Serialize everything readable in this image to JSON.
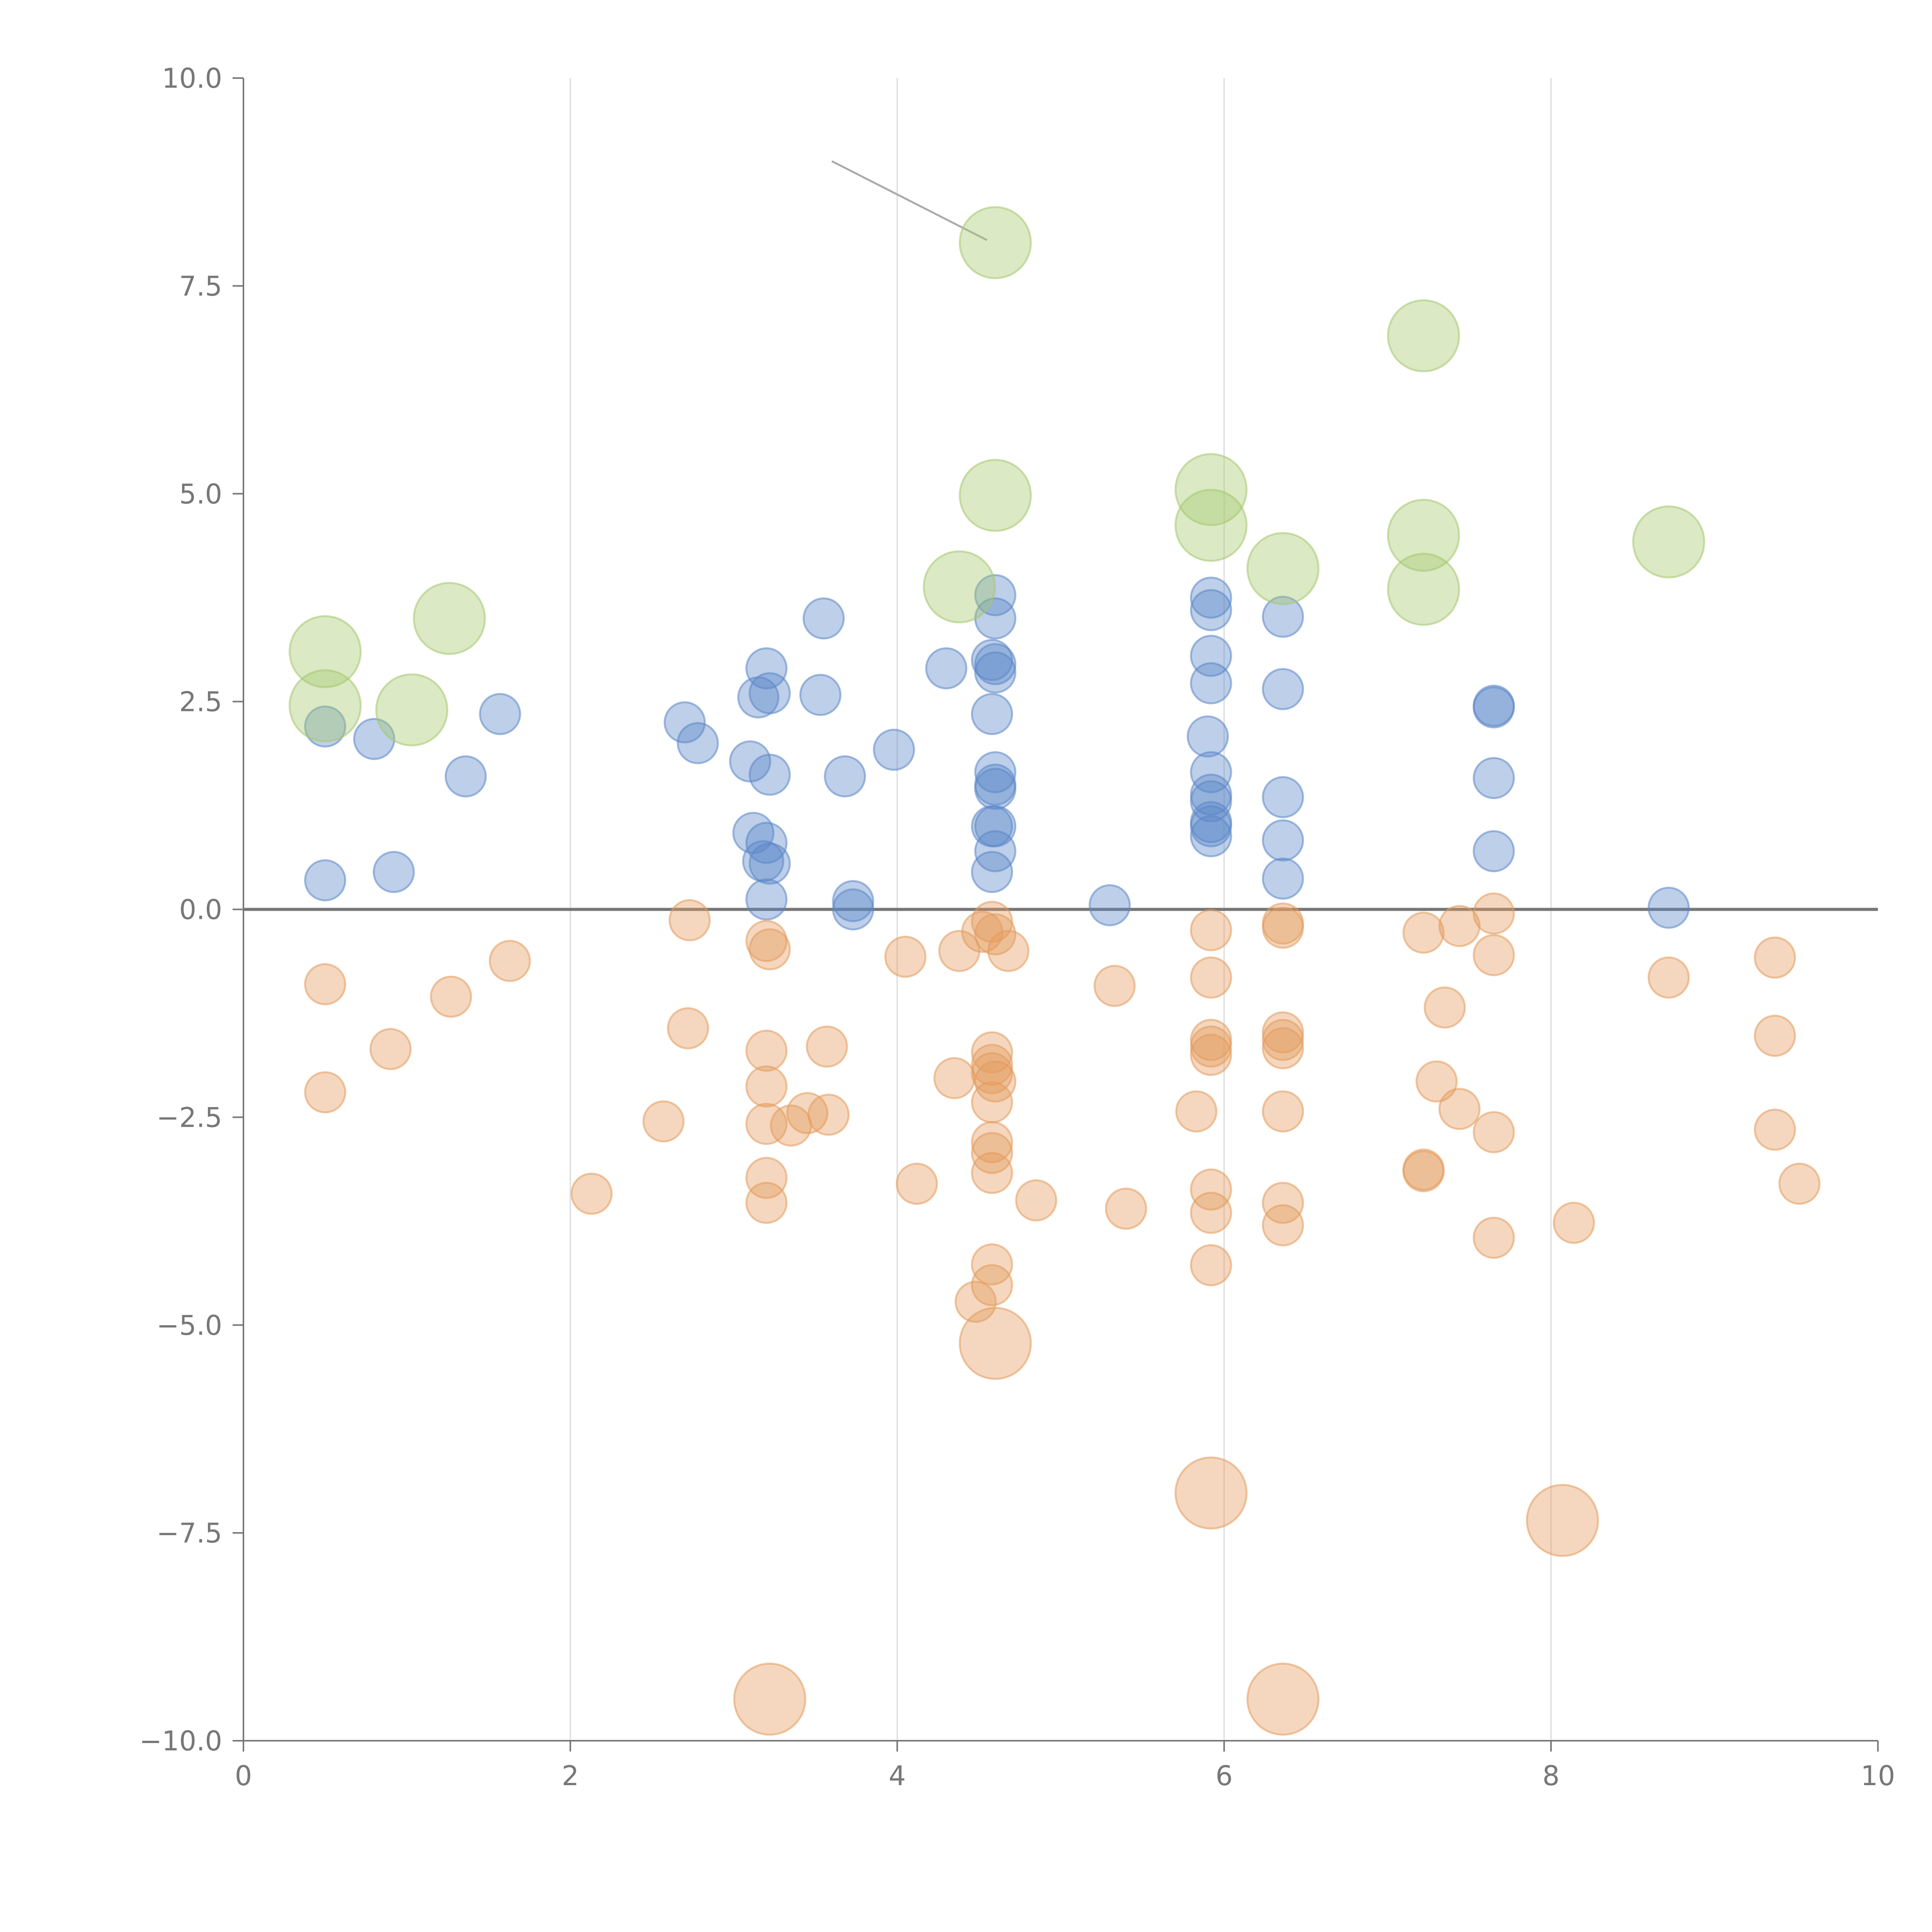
{
  "chart_data": {
    "type": "scatter",
    "title": "",
    "xlabel": "",
    "ylabel": "",
    "xlim": [
      0,
      10
    ],
    "ylim": [
      -10,
      10
    ],
    "x_ticks": [
      0,
      2,
      4,
      6,
      8,
      10
    ],
    "x_tick_labels": [
      "0",
      "2",
      "4",
      "6",
      "8",
      "10"
    ],
    "y_ticks": [
      10,
      7.5,
      5,
      2.5,
      0,
      -2.5,
      -5,
      -7.5,
      -10
    ],
    "y_tick_labels": [
      "10.0",
      "7.5",
      "5.0",
      "2.5",
      "0.0",
      "−2.5",
      "−5.0",
      "−7.5",
      "−10.0"
    ],
    "vertical_grid_x": [
      2,
      4,
      6,
      8
    ],
    "zero_line_y": 0,
    "leader_line": {
      "from": [
        3.6,
        9.0
      ],
      "to": [
        4.55,
        8.05
      ]
    },
    "legend": "none",
    "colors": {
      "positive": "#5b87c7",
      "negative": "#e39a5c",
      "highlight": "#a6c76e",
      "axis": "#777777",
      "grid": "#e2e2e2"
    },
    "series": [
      {
        "name": "positive",
        "color": "#5b87c7",
        "size": "small",
        "points": [
          [
            0.5,
            2.2
          ],
          [
            0.5,
            0.35
          ],
          [
            0.8,
            2.05
          ],
          [
            0.92,
            0.45
          ],
          [
            1.36,
            1.6
          ],
          [
            1.57,
            2.35
          ],
          [
            2.7,
            2.25
          ],
          [
            2.78,
            2.0
          ],
          [
            3.1,
            1.78
          ],
          [
            3.15,
            2.55
          ],
          [
            3.2,
            2.9
          ],
          [
            3.22,
            2.6
          ],
          [
            3.22,
            1.62
          ],
          [
            3.12,
            0.92
          ],
          [
            3.2,
            0.8
          ],
          [
            3.18,
            0.58
          ],
          [
            3.22,
            0.55
          ],
          [
            3.2,
            0.12
          ],
          [
            3.55,
            3.5
          ],
          [
            3.53,
            2.58
          ],
          [
            3.68,
            1.6
          ],
          [
            3.73,
            0.1
          ],
          [
            3.73,
            0.0
          ],
          [
            3.98,
            1.92
          ],
          [
            4.3,
            2.9
          ],
          [
            4.6,
            3.78
          ],
          [
            4.6,
            3.5
          ],
          [
            4.58,
            3.0
          ],
          [
            4.6,
            2.95
          ],
          [
            4.6,
            2.85
          ],
          [
            4.58,
            2.35
          ],
          [
            4.6,
            1.65
          ],
          [
            4.6,
            1.5
          ],
          [
            4.6,
            1.45
          ],
          [
            4.58,
            1.0
          ],
          [
            4.6,
            1.0
          ],
          [
            4.6,
            0.7
          ],
          [
            4.58,
            0.45
          ],
          [
            5.3,
            0.05
          ],
          [
            5.92,
            3.75
          ],
          [
            5.92,
            3.6
          ],
          [
            5.92,
            3.05
          ],
          [
            5.92,
            2.72
          ],
          [
            5.9,
            2.08
          ],
          [
            5.92,
            1.65
          ],
          [
            5.92,
            1.38
          ],
          [
            5.92,
            1.3
          ],
          [
            5.92,
            1.05
          ],
          [
            5.92,
            1.0
          ],
          [
            5.92,
            0.88
          ],
          [
            6.36,
            3.52
          ],
          [
            6.36,
            2.65
          ],
          [
            6.36,
            1.35
          ],
          [
            6.36,
            0.83
          ],
          [
            6.36,
            0.37
          ],
          [
            7.65,
            2.45
          ],
          [
            7.65,
            2.43
          ],
          [
            7.65,
            1.58
          ],
          [
            7.65,
            0.7
          ],
          [
            8.72,
            0.02
          ]
        ]
      },
      {
        "name": "negative",
        "color": "#e39a5c",
        "size": "small",
        "points": [
          [
            0.5,
            -0.9
          ],
          [
            0.5,
            -2.2
          ],
          [
            0.9,
            -1.68
          ],
          [
            1.27,
            -1.05
          ],
          [
            1.63,
            -0.62
          ],
          [
            2.13,
            -3.42
          ],
          [
            2.57,
            -2.55
          ],
          [
            2.72,
            -1.43
          ],
          [
            2.73,
            -0.13
          ],
          [
            3.2,
            -0.38
          ],
          [
            3.22,
            -0.48
          ],
          [
            3.2,
            -1.7
          ],
          [
            3.2,
            -2.13
          ],
          [
            3.2,
            -2.58
          ],
          [
            3.2,
            -3.23
          ],
          [
            3.2,
            -3.53
          ],
          [
            3.35,
            -2.6
          ],
          [
            3.45,
            -2.45
          ],
          [
            3.57,
            -1.65
          ],
          [
            3.58,
            -2.47
          ],
          [
            4.05,
            -0.57
          ],
          [
            4.12,
            -3.3
          ],
          [
            4.35,
            -2.03
          ],
          [
            4.38,
            -0.5
          ],
          [
            4.48,
            -4.72
          ],
          [
            4.52,
            -0.27
          ],
          [
            4.58,
            -0.15
          ],
          [
            4.6,
            -0.3
          ],
          [
            4.68,
            -0.5
          ],
          [
            4.58,
            -1.72
          ],
          [
            4.58,
            -1.87
          ],
          [
            4.58,
            -1.97
          ],
          [
            4.6,
            -2.07
          ],
          [
            4.58,
            -2.32
          ],
          [
            4.58,
            -2.8
          ],
          [
            4.58,
            -2.93
          ],
          [
            4.58,
            -3.17
          ],
          [
            4.58,
            -4.27
          ],
          [
            4.58,
            -4.52
          ],
          [
            4.85,
            -3.5
          ],
          [
            5.33,
            -0.92
          ],
          [
            5.4,
            -3.6
          ],
          [
            5.83,
            -2.43
          ],
          [
            5.92,
            -0.25
          ],
          [
            5.92,
            -0.82
          ],
          [
            5.92,
            -1.57
          ],
          [
            5.92,
            -1.65
          ],
          [
            5.92,
            -1.75
          ],
          [
            5.92,
            -3.37
          ],
          [
            5.92,
            -3.65
          ],
          [
            5.92,
            -4.28
          ],
          [
            6.36,
            -0.17
          ],
          [
            6.36,
            -0.22
          ],
          [
            6.36,
            -1.48
          ],
          [
            6.36,
            -1.57
          ],
          [
            6.36,
            -1.67
          ],
          [
            6.36,
            -2.43
          ],
          [
            6.36,
            -3.53
          ],
          [
            6.36,
            -3.8
          ],
          [
            7.22,
            -0.28
          ],
          [
            7.22,
            -3.13
          ],
          [
            7.22,
            -3.15
          ],
          [
            7.3,
            -2.07
          ],
          [
            7.35,
            -1.18
          ],
          [
            7.44,
            -0.2
          ],
          [
            7.44,
            -2.4
          ],
          [
            7.65,
            -0.05
          ],
          [
            7.65,
            -0.55
          ],
          [
            7.65,
            -2.68
          ],
          [
            7.65,
            -3.95
          ],
          [
            8.14,
            -3.77
          ],
          [
            8.72,
            -0.82
          ],
          [
            9.37,
            -0.58
          ],
          [
            9.37,
            -1.52
          ],
          [
            9.37,
            -2.65
          ],
          [
            9.52,
            -3.3
          ]
        ]
      },
      {
        "name": "highlight-positive",
        "color": "#a6c76e",
        "size": "large",
        "points": [
          [
            0.5,
            3.1
          ],
          [
            0.5,
            2.45
          ],
          [
            1.03,
            2.4
          ],
          [
            1.26,
            3.5
          ],
          [
            4.38,
            3.88
          ],
          [
            4.6,
            8.02
          ],
          [
            4.6,
            4.98
          ],
          [
            5.92,
            5.05
          ],
          [
            5.92,
            4.62
          ],
          [
            6.36,
            4.1
          ],
          [
            7.22,
            6.9
          ],
          [
            7.22,
            4.5
          ],
          [
            7.22,
            3.85
          ],
          [
            8.72,
            4.42
          ]
        ]
      },
      {
        "name": "highlight-negative",
        "color": "#e39a5c",
        "size": "large",
        "points": [
          [
            4.6,
            -5.22
          ],
          [
            5.92,
            -7.02
          ],
          [
            8.07,
            -7.35
          ],
          [
            3.22,
            -9.5
          ],
          [
            6.36,
            -9.5
          ]
        ]
      }
    ]
  }
}
